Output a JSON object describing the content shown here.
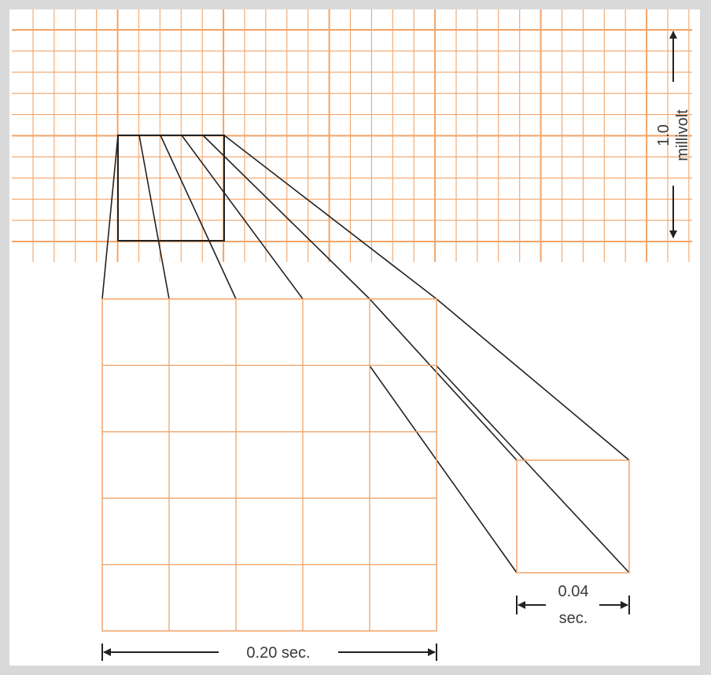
{
  "diagram": {
    "vertical_scale": {
      "value": "1.0",
      "unit": "millivolt"
    },
    "large_box_duration": "0.20 sec.",
    "small_box_duration": {
      "value": "0.04",
      "unit": "sec."
    },
    "colors": {
      "background": "#d9d9d9",
      "paper": "#ffffff",
      "grid_line": "#f2a468",
      "zoom_line": "#222222",
      "arrow": "#222222",
      "label": "#3a3a3a"
    }
  }
}
